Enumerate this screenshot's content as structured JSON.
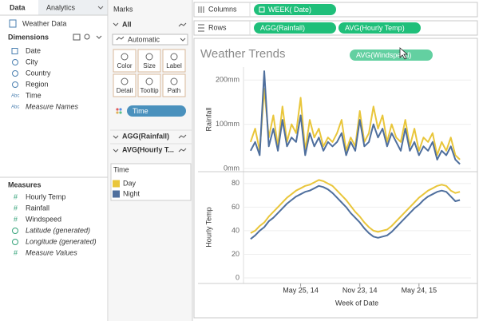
{
  "data_pane": {
    "tabs": [
      "Data",
      "Analytics"
    ],
    "source": "Weather Data",
    "string_icon_label": "Abc",
    "number_icon_label": "#",
    "dimensions_header": "Dimensions",
    "dimensions": [
      {
        "name": "Date",
        "type": "date"
      },
      {
        "name": "City",
        "type": "geo"
      },
      {
        "name": "Country",
        "type": "geo"
      },
      {
        "name": "Region",
        "type": "geo"
      },
      {
        "name": "Time",
        "type": "string"
      },
      {
        "name": "Measure Names",
        "type": "string",
        "italic": true
      }
    ],
    "measures_header": "Measures",
    "measures": [
      {
        "name": "Hourly Temp",
        "type": "number"
      },
      {
        "name": "Rainfall",
        "type": "number"
      },
      {
        "name": "Windspeed",
        "type": "number"
      },
      {
        "name": "Latitude (generated)",
        "type": "geo",
        "italic": true
      },
      {
        "name": "Longitude (generated)",
        "type": "geo",
        "italic": true
      },
      {
        "name": "Measure Values",
        "type": "number",
        "italic": true
      }
    ]
  },
  "marks_card": {
    "title": "Marks",
    "all": "All",
    "mark_type": "Automatic",
    "buttons": [
      "Color",
      "Size",
      "Label",
      "Detail",
      "Tooltip",
      "Path"
    ],
    "pill": "Time",
    "sections": [
      "AGG(Rainfall)",
      "AVG(Hourly T..."
    ]
  },
  "legend": {
    "title": "Time",
    "items": [
      {
        "name": "Day",
        "color": "#e9c63b"
      },
      {
        "name": "Night",
        "color": "#4f6f9d"
      }
    ]
  },
  "shelves": {
    "columns_label": "Columns",
    "columns": [
      "WEEK( Date)"
    ],
    "rows_label": "Rows",
    "rows": [
      "AGG(Rainfall)",
      "AVG(Hourly Temp)"
    ]
  },
  "view": {
    "title": "Weather Trends",
    "dragging_pill": "AVG(Windspeed)",
    "x_axis_label": "Week of Date",
    "x": [
      0,
      2,
      4,
      6,
      8,
      10,
      12,
      14,
      16,
      18,
      20,
      22,
      24,
      26,
      28,
      30,
      32,
      34,
      36,
      38,
      40,
      42,
      44,
      46,
      48,
      50,
      52,
      54,
      56,
      58,
      60,
      62,
      64,
      66,
      68,
      70,
      72,
      74,
      76,
      78,
      80,
      82,
      84,
      86,
      88,
      90,
      92
    ],
    "xlim": [
      -1,
      93
    ],
    "xticks": [
      {
        "value": 22,
        "label": "May 25, 14"
      },
      {
        "value": 48,
        "label": "Nov 23, 14"
      },
      {
        "value": 74,
        "label": "May 24, 15"
      }
    ],
    "chart_data": [
      {
        "type": "line",
        "ylabel": "Rainfall",
        "ylim": [
          0,
          222
        ],
        "yticks": [
          {
            "value": 0,
            "label": "0mm"
          },
          {
            "value": 100,
            "label": "100mm"
          },
          {
            "value": 200,
            "label": "200mm"
          }
        ],
        "grid": true,
        "series": [
          {
            "name": "Day",
            "color": "#e9c63b",
            "values": [
              60,
              90,
              40,
              180,
              70,
              120,
              50,
              140,
              60,
              100,
              80,
              160,
              40,
              110,
              70,
              90,
              50,
              70,
              60,
              80,
              110,
              40,
              70,
              50,
              130,
              60,
              80,
              140,
              90,
              120,
              60,
              100,
              70,
              60,
              110,
              50,
              90,
              40,
              70,
              60,
              80,
              30,
              60,
              40,
              70,
              30,
              20
            ]
          },
          {
            "name": "Night",
            "color": "#4f6f9d",
            "values": [
              40,
              60,
              30,
              220,
              50,
              90,
              40,
              110,
              50,
              70,
              60,
              120,
              30,
              80,
              50,
              70,
              40,
              60,
              50,
              60,
              80,
              30,
              60,
              40,
              110,
              50,
              60,
              100,
              70,
              90,
              50,
              80,
              60,
              40,
              90,
              40,
              60,
              30,
              50,
              40,
              60,
              20,
              40,
              30,
              50,
              20,
              10
            ]
          }
        ]
      },
      {
        "type": "line",
        "ylabel": "Hourly Temp",
        "ylim": [
          0,
          86
        ],
        "yticks": [
          0,
          20,
          40,
          60,
          80
        ],
        "grid": true,
        "series": [
          {
            "name": "Day",
            "color": "#e9c63b",
            "values": [
              38,
              40,
              44,
              47,
              52,
              56,
              60,
              64,
              68,
              71,
              74,
              76,
              78,
              79,
              81,
              83,
              82,
              80,
              78,
              74,
              70,
              66,
              61,
              56,
              52,
              47,
              43,
              40,
              39,
              40,
              41,
              44,
              48,
              52,
              56,
              60,
              64,
              68,
              71,
              74,
              76,
              78,
              79,
              78,
              74,
              72,
              73
            ]
          },
          {
            "name": "Night",
            "color": "#4f6f9d",
            "values": [
              33,
              36,
              40,
              43,
              48,
              51,
              55,
              59,
              63,
              66,
              69,
              71,
              73,
              74,
              76,
              78,
              77,
              75,
              72,
              68,
              64,
              60,
              55,
              51,
              47,
              42,
              38,
              35,
              34,
              35,
              36,
              39,
              43,
              47,
              51,
              55,
              59,
              62,
              66,
              69,
              71,
              73,
              74,
              73,
              69,
              65,
              66
            ]
          }
        ]
      }
    ]
  }
}
